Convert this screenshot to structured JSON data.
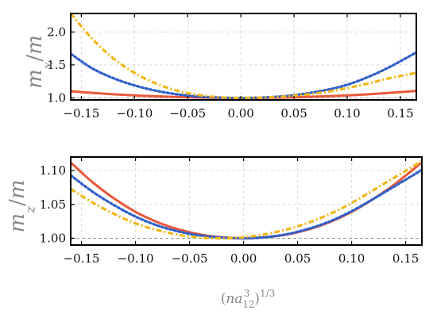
{
  "chart_data": [
    {
      "type": "line",
      "panel": "top",
      "ylabel": "m_x/m",
      "xlabel": "",
      "xlim": [
        -0.16,
        0.165
      ],
      "ylim": [
        0.97,
        2.28
      ],
      "x_ticks": [
        -0.15,
        -0.1,
        -0.05,
        0.0,
        0.05,
        0.1,
        0.15
      ],
      "x_tick_labels": [
        "−0.15",
        "−0.10",
        "−0.05",
        "0.00",
        "0.05",
        "0.10",
        "0.15"
      ],
      "y_ticks": [
        1.0,
        1.5,
        2.0
      ],
      "y_tick_labels": [
        "1.0",
        "1.5",
        "2.0"
      ],
      "grid": true,
      "reference_line": {
        "y": 1.0,
        "style": "dashed",
        "color": "#999999"
      },
      "series": [
        {
          "color": "#e8583a",
          "style": "solid",
          "x": [
            -0.16,
            -0.12,
            -0.08,
            -0.04,
            0.0,
            0.04,
            0.08,
            0.12,
            0.165
          ],
          "y": [
            1.1,
            1.056,
            1.025,
            1.006,
            1.0,
            1.006,
            1.025,
            1.056,
            1.106
          ]
        },
        {
          "color": "#2f5fc9",
          "style": "dotted",
          "x": [
            -0.16,
            -0.14,
            -0.12,
            -0.1,
            -0.08,
            -0.06,
            -0.04,
            -0.02,
            0.0,
            0.02,
            0.04,
            0.06,
            0.08,
            0.1,
            0.12,
            0.14,
            0.165
          ],
          "y": [
            1.67,
            1.45,
            1.3,
            1.19,
            1.11,
            1.055,
            1.022,
            1.005,
            1.0,
            1.006,
            1.026,
            1.063,
            1.12,
            1.2,
            1.32,
            1.47,
            1.69
          ]
        },
        {
          "color": "#f0b81c",
          "style": "dashdot",
          "x": [
            -0.16,
            -0.14,
            -0.12,
            -0.1,
            -0.08,
            -0.06,
            -0.04,
            -0.02,
            0.0,
            0.02,
            0.04,
            0.06,
            0.08,
            0.1,
            0.12,
            0.14,
            0.165
          ],
          "y": [
            2.28,
            1.9,
            1.6,
            1.38,
            1.22,
            1.11,
            1.045,
            1.01,
            1.0,
            1.005,
            1.02,
            1.05,
            1.09,
            1.15,
            1.22,
            1.3,
            1.38
          ]
        }
      ]
    },
    {
      "type": "line",
      "panel": "bottom",
      "ylabel": "m_z/m",
      "xlabel": "(na_12^3)^1/3",
      "xlim": [
        -0.16,
        0.165
      ],
      "ylim": [
        0.99,
        1.12
      ],
      "x_ticks": [
        -0.15,
        -0.1,
        -0.05,
        0.0,
        0.05,
        0.1,
        0.15
      ],
      "x_tick_labels": [
        "−0.15",
        "−0.10",
        "−0.05",
        "0.00",
        "0.05",
        "0.10",
        "0.15"
      ],
      "y_ticks": [
        1.0,
        1.05,
        1.1
      ],
      "y_tick_labels": [
        "1.00",
        "1.05",
        "1.10"
      ],
      "grid": true,
      "reference_line": {
        "y": 1.0,
        "style": "dashed",
        "color": "#999999"
      },
      "series": [
        {
          "color": "#e8583a",
          "style": "solid",
          "x": [
            -0.16,
            -0.14,
            -0.12,
            -0.1,
            -0.08,
            -0.06,
            -0.04,
            -0.02,
            0.0,
            0.02,
            0.04,
            0.06,
            0.08,
            0.1,
            0.12,
            0.14,
            0.165
          ],
          "y": [
            1.112,
            1.083,
            1.059,
            1.039,
            1.024,
            1.013,
            1.0055,
            1.0015,
            1.0,
            1.0015,
            1.0055,
            1.013,
            1.024,
            1.039,
            1.058,
            1.08,
            1.112
          ]
        },
        {
          "color": "#2f5fc9",
          "style": "dotted",
          "x": [
            -0.16,
            -0.14,
            -0.12,
            -0.1,
            -0.08,
            -0.06,
            -0.04,
            -0.02,
            0.0,
            0.02,
            0.04,
            0.06,
            0.08,
            0.1,
            0.12,
            0.14,
            0.165
          ],
          "y": [
            1.093,
            1.069,
            1.049,
            1.032,
            1.019,
            1.01,
            1.004,
            1.001,
            1.0,
            1.0015,
            1.006,
            1.014,
            1.025,
            1.04,
            1.058,
            1.077,
            1.101
          ]
        },
        {
          "color": "#f0b81c",
          "style": "dashdot",
          "x": [
            -0.16,
            -0.14,
            -0.12,
            -0.1,
            -0.08,
            -0.06,
            -0.04,
            -0.02,
            0.0,
            0.02,
            0.04,
            0.06,
            0.08,
            0.1,
            0.12,
            0.14,
            0.165
          ],
          "y": [
            1.073,
            1.053,
            1.036,
            1.022,
            1.012,
            1.005,
            1.001,
            1.0,
            1.0015,
            1.006,
            1.013,
            1.023,
            1.036,
            1.052,
            1.071,
            1.09,
            1.114
          ]
        }
      ]
    }
  ]
}
